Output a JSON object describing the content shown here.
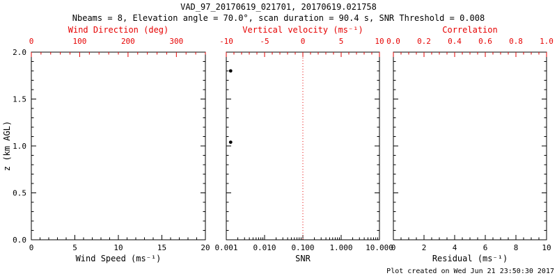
{
  "title": "VAD_97_20170619_021701, 20170619.021758",
  "subtitle": "Nbeams = 8, Elevation angle = 70.0°, scan duration = 90.4 s, SNR Threshold = 0.008",
  "footer": "Plot created on Wed Jun 21 23:50:30 2017",
  "colors": {
    "primary_axis": "#000000",
    "secondary_axis": "#e60000",
    "background": "#ffffff",
    "point": "#000000"
  },
  "chart_data": [
    {
      "type": "scatter",
      "panel": "wind-speed-direction",
      "bottom_axis": {
        "label": "Wind Speed (ms⁻¹)",
        "lim": [
          0,
          20
        ],
        "ticks": [
          0,
          5,
          10,
          15,
          20
        ],
        "tick_labels": [
          "0",
          "5",
          "10",
          "15",
          "20"
        ]
      },
      "top_axis": {
        "label": "Wind Direction (deg)",
        "lim": [
          0,
          360
        ],
        "ticks": [
          0,
          100,
          200,
          300
        ],
        "tick_labels": [
          "0",
          "100",
          "200",
          "300"
        ]
      },
      "y_axis": {
        "label": "z (km AGL)",
        "lim": [
          0,
          2
        ],
        "ticks": [
          0,
          0.5,
          1,
          1.5,
          2
        ],
        "tick_labels": [
          "0.0",
          "0.5",
          "1.0",
          "1.5",
          "2.0"
        ]
      },
      "points": []
    },
    {
      "type": "scatter",
      "panel": "snr-vertical-velocity",
      "bottom_axis": {
        "label": "SNR",
        "scale": "log",
        "lim": [
          0.001,
          10
        ],
        "ticks": [
          0.001,
          0.01,
          0.1,
          1,
          10
        ],
        "tick_labels": [
          "0.001",
          "0.010",
          "0.100",
          "1.000",
          "10.000"
        ]
      },
      "top_axis": {
        "label": "Vertical velocity (ms⁻¹)",
        "lim": [
          -10,
          10
        ],
        "ticks": [
          -10,
          -5,
          0,
          5,
          10
        ],
        "tick_labels": [
          "-10",
          "-5",
          "0",
          "5",
          "10"
        ]
      },
      "y_axis": {
        "lim": [
          0,
          2
        ],
        "ticks": [
          0,
          0.5,
          1,
          1.5,
          2
        ]
      },
      "refline": {
        "axis": "top",
        "value": 0,
        "style": "dotted",
        "color": "#e60000"
      },
      "points": [
        {
          "x": 0.0013,
          "z": 1.8
        },
        {
          "x": 0.0013,
          "z": 1.04
        }
      ]
    },
    {
      "type": "scatter",
      "panel": "residual-correlation",
      "bottom_axis": {
        "label": "Residual (ms⁻¹)",
        "lim": [
          0,
          10
        ],
        "ticks": [
          0,
          2,
          4,
          6,
          8,
          10
        ],
        "tick_labels": [
          "0",
          "2",
          "4",
          "6",
          "8",
          "10"
        ]
      },
      "top_axis": {
        "label": "Correlation",
        "lim": [
          0,
          1
        ],
        "ticks": [
          0,
          0.2,
          0.4,
          0.6,
          0.8,
          1
        ],
        "tick_labels": [
          "0.0",
          "0.2",
          "0.4",
          "0.6",
          "0.8",
          "1.0"
        ]
      },
      "y_axis": {
        "lim": [
          0,
          2
        ],
        "ticks": [
          0,
          0.5,
          1,
          1.5,
          2
        ]
      },
      "points": []
    }
  ]
}
